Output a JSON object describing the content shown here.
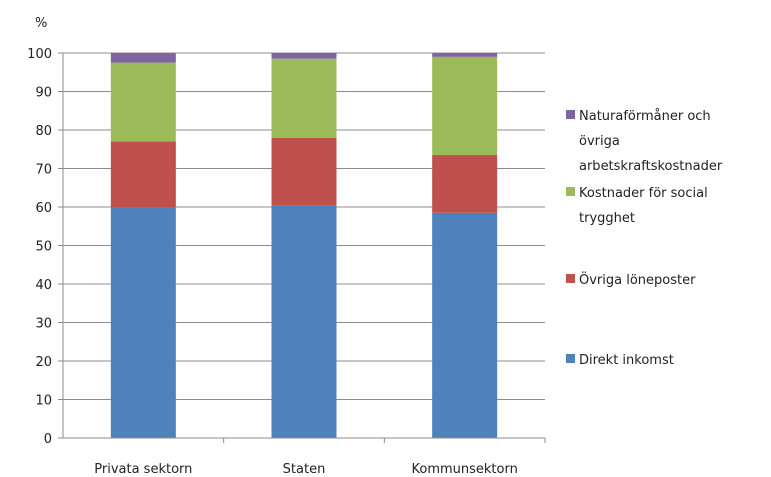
{
  "chart_data": {
    "type": "bar",
    "stacked": true,
    "ylabel": "%",
    "ylim": [
      0,
      100
    ],
    "yticks": [
      0,
      10,
      20,
      30,
      40,
      50,
      60,
      70,
      80,
      90,
      100
    ],
    "grid": true,
    "legend_position": "right",
    "categories": [
      "Privata sektorn",
      "Staten",
      "Kommunsektorn"
    ],
    "series": [
      {
        "name": "Direkt inkomst",
        "color": "#4f81bd",
        "values": [
          60,
          60.5,
          58.5
        ]
      },
      {
        "name": "Övriga löneposter",
        "color": "#c0504d",
        "values": [
          17,
          17.5,
          15
        ]
      },
      {
        "name": "Kostnader för social trygghet",
        "color": "#9bbb59",
        "values": [
          20.5,
          20.5,
          25.5
        ]
      },
      {
        "name": "Naturaförmåner och övriga arbetskraftskostnader",
        "color": "#8064a2",
        "values": [
          2.5,
          1.5,
          1
        ]
      }
    ],
    "legend": [
      {
        "series": 3,
        "lines": [
          "Naturaförmåner och",
          "övriga",
          "arbetskraftskostnader"
        ]
      },
      {
        "series": 2,
        "lines": [
          "Kostnader för social",
          "trygghet"
        ]
      },
      {
        "series": 1,
        "lines": [
          "Övriga löneposter"
        ]
      },
      {
        "series": 0,
        "lines": [
          "Direkt inkomst"
        ]
      }
    ]
  }
}
